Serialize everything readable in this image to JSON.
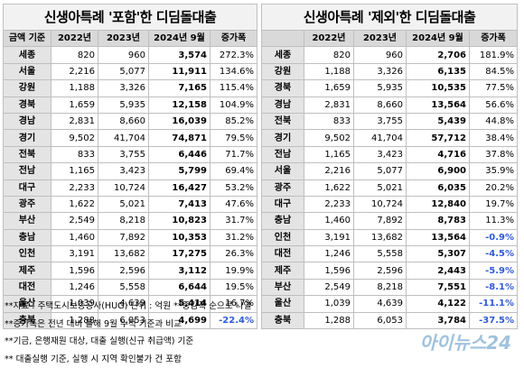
{
  "left": {
    "title": "신생아특례 '포함'한 디딤돌대출",
    "headers": [
      "금액 기준",
      "2022년",
      "2023년",
      "2024년 9월",
      "증가폭"
    ],
    "rows": [
      {
        "region": "세종",
        "y2022": "820",
        "y2023": "960",
        "y2024": "3,574",
        "inc": "272.3%",
        "neg": false
      },
      {
        "region": "서울",
        "y2022": "2,216",
        "y2023": "5,077",
        "y2024": "11,911",
        "inc": "134.6%",
        "neg": false
      },
      {
        "region": "강원",
        "y2022": "1,188",
        "y2023": "3,326",
        "y2024": "7,165",
        "inc": "115.4%",
        "neg": false
      },
      {
        "region": "경북",
        "y2022": "1,659",
        "y2023": "5,935",
        "y2024": "12,158",
        "inc": "104.9%",
        "neg": false
      },
      {
        "region": "경남",
        "y2022": "2,831",
        "y2023": "8,660",
        "y2024": "16,039",
        "inc": "85.2%",
        "neg": false
      },
      {
        "region": "경기",
        "y2022": "9,502",
        "y2023": "41,704",
        "y2024": "74,871",
        "inc": "79.5%",
        "neg": false
      },
      {
        "region": "전북",
        "y2022": "833",
        "y2023": "3,755",
        "y2024": "6,446",
        "inc": "71.7%",
        "neg": false
      },
      {
        "region": "전남",
        "y2022": "1,165",
        "y2023": "3,423",
        "y2024": "5,799",
        "inc": "69.4%",
        "neg": false
      },
      {
        "region": "대구",
        "y2022": "2,233",
        "y2023": "10,724",
        "y2024": "16,427",
        "inc": "53.2%",
        "neg": false
      },
      {
        "region": "광주",
        "y2022": "1,622",
        "y2023": "5,021",
        "y2024": "7,413",
        "inc": "47.6%",
        "neg": false
      },
      {
        "region": "부산",
        "y2022": "2,549",
        "y2023": "8,218",
        "y2024": "10,823",
        "inc": "31.7%",
        "neg": false
      },
      {
        "region": "충남",
        "y2022": "1,460",
        "y2023": "7,892",
        "y2024": "10,353",
        "inc": "31.2%",
        "neg": false
      },
      {
        "region": "인천",
        "y2022": "3,191",
        "y2023": "13,682",
        "y2024": "17,275",
        "inc": "26.3%",
        "neg": false
      },
      {
        "region": "제주",
        "y2022": "1,596",
        "y2023": "2,596",
        "y2024": "3,112",
        "inc": "19.9%",
        "neg": false
      },
      {
        "region": "대전",
        "y2022": "1,246",
        "y2023": "5,558",
        "y2024": "6,644",
        "inc": "19.5%",
        "neg": false
      },
      {
        "region": "울산",
        "y2022": "1,039",
        "y2023": "4,639",
        "y2024": "5,414",
        "inc": "16.7%",
        "neg": false
      },
      {
        "region": "충북",
        "y2022": "1,288",
        "y2023": "6,053",
        "y2024": "4,699",
        "inc": "-22.4%",
        "neg": true
      }
    ]
  },
  "right": {
    "title": "신생아특례 '제외'한 디딤돌대출",
    "headers": [
      "",
      "2022년",
      "2023년",
      "2024년 9월",
      "증가폭"
    ],
    "rows": [
      {
        "region": "세종",
        "y2022": "820",
        "y2023": "960",
        "y2024": "2,706",
        "inc": "181.9%",
        "neg": false
      },
      {
        "region": "강원",
        "y2022": "1,188",
        "y2023": "3,326",
        "y2024": "6,135",
        "inc": "84.5%",
        "neg": false
      },
      {
        "region": "경북",
        "y2022": "1,659",
        "y2023": "5,935",
        "y2024": "10,535",
        "inc": "77.5%",
        "neg": false
      },
      {
        "region": "경남",
        "y2022": "2,831",
        "y2023": "8,660",
        "y2024": "13,564",
        "inc": "56.6%",
        "neg": false
      },
      {
        "region": "전북",
        "y2022": "833",
        "y2023": "3,755",
        "y2024": "5,439",
        "inc": "44.8%",
        "neg": false
      },
      {
        "region": "경기",
        "y2022": "9,502",
        "y2023": "41,704",
        "y2024": "57,712",
        "inc": "38.4%",
        "neg": false
      },
      {
        "region": "전남",
        "y2022": "1,165",
        "y2023": "3,423",
        "y2024": "4,716",
        "inc": "37.8%",
        "neg": false
      },
      {
        "region": "서울",
        "y2022": "2,216",
        "y2023": "5,077",
        "y2024": "6,900",
        "inc": "35.9%",
        "neg": false
      },
      {
        "region": "광주",
        "y2022": "1,622",
        "y2023": "5,021",
        "y2024": "6,035",
        "inc": "20.2%",
        "neg": false
      },
      {
        "region": "대구",
        "y2022": "2,233",
        "y2023": "10,724",
        "y2024": "12,840",
        "inc": "19.7%",
        "neg": false
      },
      {
        "region": "충남",
        "y2022": "1,460",
        "y2023": "7,892",
        "y2024": "8,783",
        "inc": "11.3%",
        "neg": false
      },
      {
        "region": "인천",
        "y2022": "3,191",
        "y2023": "13,682",
        "y2024": "13,564",
        "inc": "-0.9%",
        "neg": true
      },
      {
        "region": "대전",
        "y2022": "1,246",
        "y2023": "5,558",
        "y2024": "5,307",
        "inc": "-4.5%",
        "neg": true
      },
      {
        "region": "제주",
        "y2022": "1,596",
        "y2023": "2,596",
        "y2024": "2,443",
        "inc": "-5.9%",
        "neg": true
      },
      {
        "region": "부산",
        "y2022": "2,549",
        "y2023": "8,218",
        "y2024": "7,551",
        "inc": "-8.1%",
        "neg": true
      },
      {
        "region": "울산",
        "y2022": "1,039",
        "y2023": "4,639",
        "y2024": "4,122",
        "inc": "-11.1%",
        "neg": true
      },
      {
        "region": "충북",
        "y2022": "1,288",
        "y2023": "6,053",
        "y2024": "3,784",
        "inc": "-37.5%",
        "neg": true
      }
    ]
  },
  "notes": [
    "**자료 : 주택도시보증공사(HUG) 단위 : 억원  **증감폭 순으로 나열",
    "**증가폭은 전년 대비 올해 9월 누적 기준과 비교",
    "**기금, 은행재원 대상, 대출 실행(신규 취급액) 기준",
    "** 대출실행 기준, 실행 시 지역 확인불가 건 포함"
  ],
  "watermark": "아이뉴스24",
  "colors": {
    "negative": "#2f5bd8",
    "header_bg": "#d9d9d9",
    "region_bg": "#e4e4e4",
    "watermark": "#8fb8d8"
  }
}
